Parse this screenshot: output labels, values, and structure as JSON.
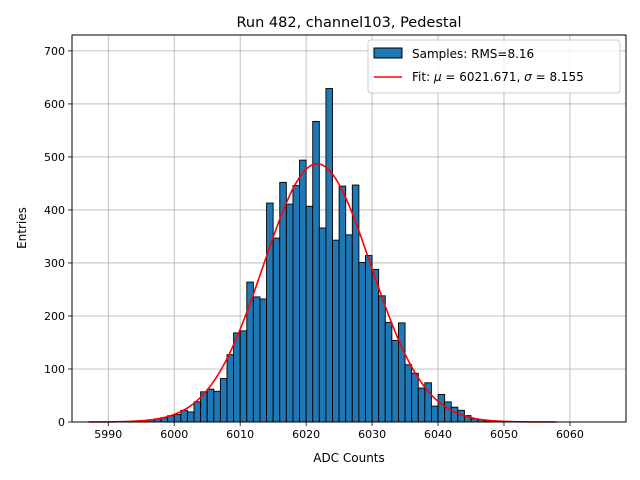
{
  "chart_data": {
    "type": "bar",
    "title": "Run 482, channel103, Pedestal",
    "xlabel": "ADC Counts",
    "ylabel": "Entries",
    "xlim": [
      5984.5,
      6068.5
    ],
    "ylim": [
      0,
      730
    ],
    "xticks": [
      5990,
      6000,
      6010,
      6020,
      6030,
      6040,
      6050,
      6060
    ],
    "yticks": [
      0,
      100,
      200,
      300,
      400,
      500,
      600,
      700
    ],
    "grid": true,
    "legend_position": "top-right",
    "histogram": {
      "name": "Samples: RMS=8.16",
      "color": "#1f77b4",
      "bins_start": 5995,
      "bin_width": 1,
      "counts": [
        3,
        4,
        6,
        8,
        12,
        14,
        22,
        19,
        38,
        57,
        62,
        58,
        82,
        127,
        168,
        172,
        264,
        236,
        232,
        413,
        347,
        452,
        411,
        446,
        494,
        407,
        567,
        366,
        629,
        343,
        445,
        353,
        447,
        301,
        314,
        288,
        238,
        188,
        154,
        187,
        108,
        92,
        64,
        74,
        30,
        52,
        38,
        28,
        22,
        12,
        6,
        4,
        2
      ]
    },
    "fit": {
      "name": "Fit: μ = 6021.671, σ = 8.155",
      "color": "#ff0000",
      "mu": 6021.671,
      "sigma": 8.155,
      "amplitude": 487,
      "x_range": [
        5987,
        6058
      ]
    }
  },
  "legend": {
    "samples_label": "Samples: RMS=8.16",
    "fit_label_prefix": "Fit: ",
    "mu_symbol": "μ",
    "fit_mu_text": " = 6021.671, ",
    "sigma_symbol": "σ",
    "fit_sigma_text": " = 8.155"
  }
}
